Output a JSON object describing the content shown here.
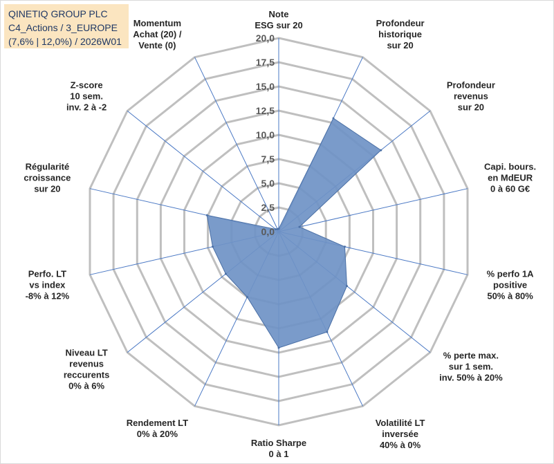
{
  "chart_data": {
    "type": "radar",
    "title_lines": [
      "QINETIQ GROUP PLC",
      "C4_Actions / 3_EUROPE",
      "(7,6% | 12,0%) / 2026W01"
    ],
    "r_range": [
      0,
      20
    ],
    "r_ticks": [
      "0,0",
      "2,5",
      "5,0",
      "7,5",
      "10,0",
      "12,5",
      "15,0",
      "17,5",
      "20,0"
    ],
    "categories": [
      {
        "label": [
          "Note",
          "ESG sur 20"
        ],
        "value": 0.3
      },
      {
        "label": [
          "Profondeur",
          "historique",
          "sur 20"
        ],
        "value": 13.0
      },
      {
        "label": [
          "Profondeur",
          "revenus",
          "sur 20"
        ],
        "value": 13.5
      },
      {
        "label": [
          "Capi. bours.",
          "en MdEUR",
          "0 à 60 G€"
        ],
        "value": 2.2
      },
      {
        "label": [
          "% perfo 1A",
          "positive",
          "50% à 80%"
        ],
        "value": 7.0
      },
      {
        "label": [
          "% perte max.",
          "sur 1 sem.",
          "inv. 50% à 20%"
        ],
        "value": 9.0
      },
      {
        "label": [
          "Volatilité LT",
          "inversée",
          "40% à 0%"
        ],
        "value": 11.5
      },
      {
        "label": [
          "Ratio Sharpe",
          "0 à 1"
        ],
        "value": 12.0
      },
      {
        "label": [
          "Rendement LT",
          "0% à 20%"
        ],
        "value": 7.5
      },
      {
        "label": [
          "Niveau LT",
          "revenus",
          "reccurents",
          "0% à 6%"
        ],
        "value": 7.0
      },
      {
        "label": [
          "Perfo. LT",
          "vs index",
          "-8% à 12%"
        ],
        "value": 7.0
      },
      {
        "label": [
          "Régularité",
          "croissance",
          "sur 20"
        ],
        "value": 7.6
      },
      {
        "label": [
          "Z-score",
          "10 sem.",
          "inv. 2 à -2"
        ],
        "value": 0.4
      },
      {
        "label": [
          "Momentum",
          "Achat (20) /",
          "Vente (0)"
        ],
        "value": 0.3
      }
    ],
    "grid": true,
    "legend": "none",
    "colors": {
      "fill": "#6f93c5",
      "stroke": "#4a6fa5",
      "grid": "#bfbfbf",
      "spoke": "#4a78c4",
      "title_bg": "#fbe5c0"
    }
  }
}
